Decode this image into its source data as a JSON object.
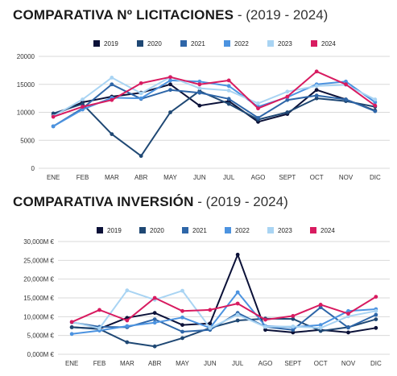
{
  "colors": {
    "2019": "#0b1138",
    "2020": "#1f4874",
    "2021": "#2e66a8",
    "2022": "#4c93e0",
    "2023": "#a9d4f3",
    "2024": "#d81b60"
  },
  "chart_data": [
    {
      "type": "line",
      "title_bold": "COMPARATIVA Nº LICITACIONES",
      "title_rest": " - (2019 - 2024)",
      "categories": [
        "ENE",
        "FEB",
        "MAR",
        "ABR",
        "MAY",
        "JUN",
        "JUL",
        "AGO",
        "SEPT",
        "OCT",
        "NOV",
        "DIC"
      ],
      "ylim": [
        0,
        20000
      ],
      "yticks": [
        0,
        5000,
        10000,
        15000,
        20000
      ],
      "ytick_labels": [
        "0",
        "5000",
        "10000",
        "15000",
        "20000"
      ],
      "grid": true,
      "legend_position": "top",
      "series": [
        {
          "name": "2019",
          "values": [
            9500,
            11800,
            12800,
            13500,
            15000,
            11200,
            12000,
            8300,
            9700,
            14000,
            12300,
            10300
          ]
        },
        {
          "name": "2020",
          "values": [
            9800,
            11500,
            6100,
            2200,
            10000,
            13800,
            11500,
            8700,
            10000,
            12500,
            12000,
            11000
          ]
        },
        {
          "name": "2021",
          "values": [
            7500,
            10700,
            15000,
            12400,
            14000,
            13500,
            12400,
            9000,
            12200,
            13000,
            12300,
            10200
          ]
        },
        {
          "name": "2022",
          "values": [
            7500,
            10500,
            12600,
            12500,
            15700,
            15500,
            14700,
            11000,
            12700,
            15000,
            15500,
            11800
          ]
        },
        {
          "name": "2023",
          "values": [
            9300,
            12300,
            16200,
            13400,
            16300,
            14300,
            13900,
            11600,
            13700,
            14700,
            14900,
            12300
          ]
        },
        {
          "name": "2024",
          "values": [
            9200,
            11000,
            12200,
            15200,
            16300,
            15000,
            15700,
            10700,
            12800,
            17300,
            15000,
            11200
          ]
        }
      ]
    },
    {
      "type": "line",
      "title_bold": "COMPARATIVA INVERSIÓN",
      "title_rest": " - (2019 - 2024)",
      "categories": [
        "ENE",
        "FEB",
        "MAR",
        "ABR",
        "MAY",
        "JUN",
        "JUL",
        "AGO",
        "SEPT",
        "OCT",
        "NOV",
        "DIC"
      ],
      "ylim": [
        0,
        30
      ],
      "yticks": [
        0,
        5,
        10,
        15,
        20,
        25,
        30
      ],
      "ytick_labels": [
        "0,000M €",
        "5,000M €",
        "10,000M €",
        "15,000M €",
        "20,000M €",
        "25,000M €",
        "30,000M €"
      ],
      "ylabel_unit": "M €",
      "grid": true,
      "legend_position": "top",
      "series": [
        {
          "name": "2019",
          "values": [
            7.2,
            6.8,
            9.7,
            11.0,
            7.8,
            8.2,
            26.5,
            6.5,
            5.8,
            6.5,
            5.8,
            7.0
          ]
        },
        {
          "name": "2020",
          "values": [
            7.2,
            6.7,
            3.2,
            2.1,
            4.3,
            7.0,
            9.0,
            9.5,
            9.4,
            6.2,
            7.2,
            9.3
          ]
        },
        {
          "name": "2021",
          "values": [
            8.5,
            7.3,
            7.2,
            9.3,
            6.0,
            6.5,
            11.0,
            7.3,
            6.5,
            12.5,
            7.1,
            10.5
          ]
        },
        {
          "name": "2022",
          "values": [
            5.4,
            6.3,
            7.5,
            8.4,
            9.8,
            7.0,
            16.5,
            7.5,
            7.2,
            7.8,
            11.5,
            12.0
          ]
        },
        {
          "name": "2023",
          "values": [
            8.6,
            6.9,
            17.0,
            14.5,
            16.9,
            7.0,
            10.5,
            7.3,
            7.4,
            7.0,
            10.1,
            11.5
          ]
        },
        {
          "name": "2024",
          "values": [
            8.6,
            11.8,
            9.0,
            15.0,
            11.5,
            11.8,
            13.5,
            9.2,
            10.2,
            13.2,
            10.8,
            15.3
          ]
        }
      ]
    }
  ]
}
